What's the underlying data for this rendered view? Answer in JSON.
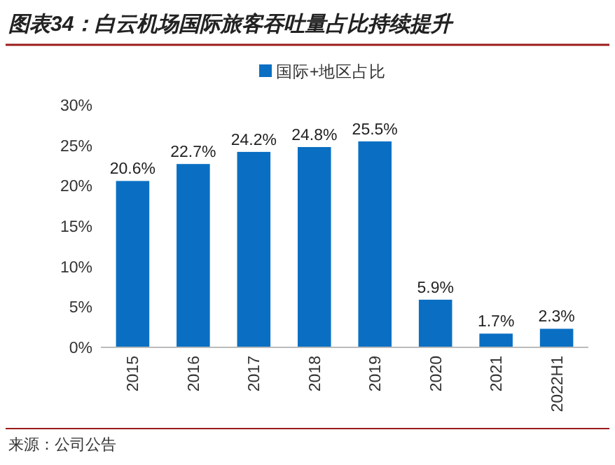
{
  "chart_data": {
    "type": "bar",
    "title": "图表34：白云机场国际旅客吞吐量占比持续提升",
    "categories": [
      "2015",
      "2016",
      "2017",
      "2018",
      "2019",
      "2020",
      "2021",
      "2022H1"
    ],
    "series": [
      {
        "name": "国际+地区占比",
        "color": "#0a6fc2",
        "values": [
          20.6,
          22.7,
          24.2,
          24.8,
          25.5,
          5.9,
          1.7,
          2.3
        ],
        "value_labels": [
          "20.6%",
          "22.7%",
          "24.2%",
          "24.8%",
          "25.5%",
          "5.9%",
          "1.7%",
          "2.3%"
        ]
      }
    ],
    "ylim": [
      0,
      30
    ],
    "yticks": [
      {
        "value": 0,
        "label": "0%"
      },
      {
        "value": 5,
        "label": "5%"
      },
      {
        "value": 10,
        "label": "10%"
      },
      {
        "value": 15,
        "label": "15%"
      },
      {
        "value": 20,
        "label": "20%"
      },
      {
        "value": 25,
        "label": "25%"
      },
      {
        "value": 30,
        "label": "30%"
      }
    ],
    "legend": "top",
    "grid": false,
    "annotations": [
      "来源：公司公告"
    ]
  }
}
